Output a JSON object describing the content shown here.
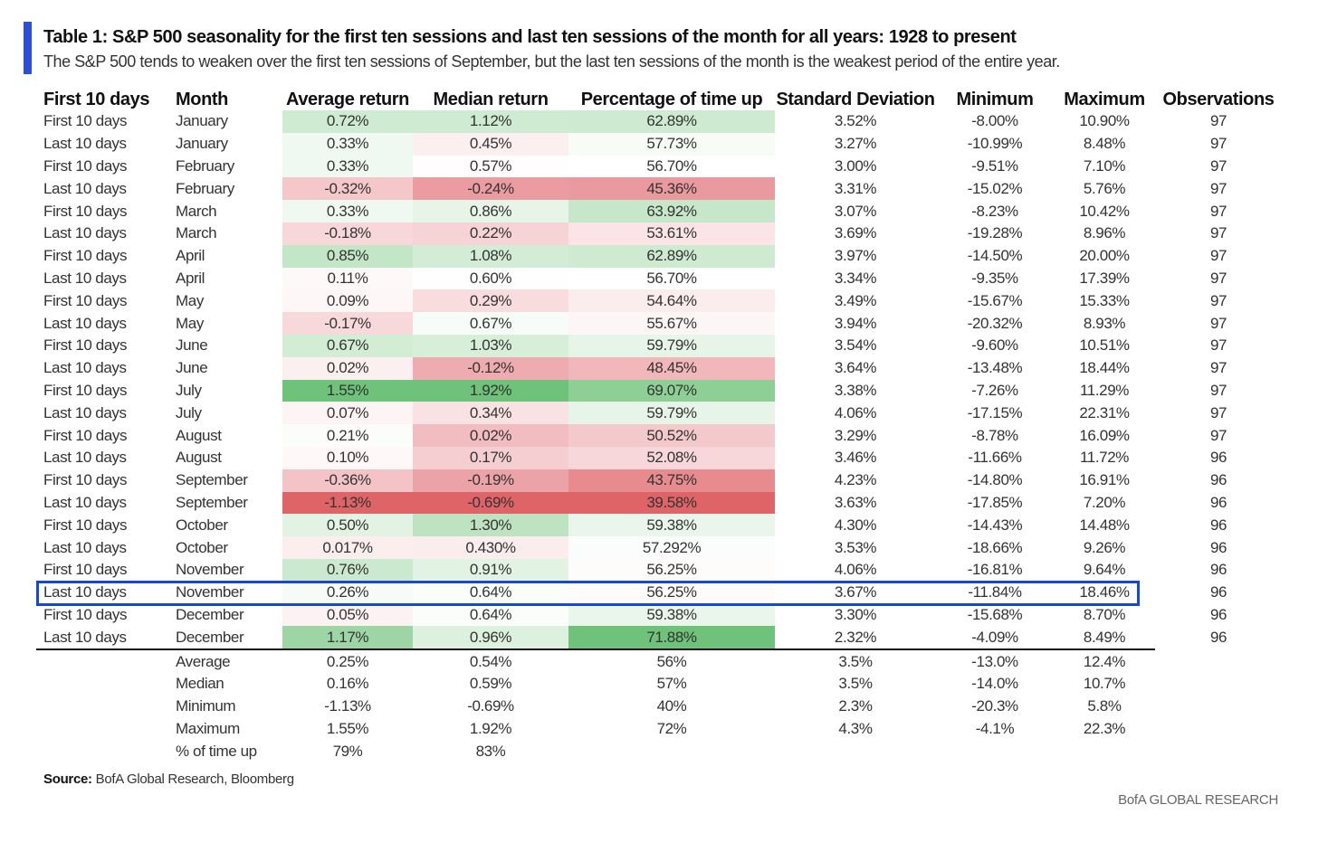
{
  "title": "Table 1: S&P 500 seasonality for the first ten sessions and last ten sessions of the month for all years: 1928 to present",
  "subtitle": "The S&P 500 tends to weaken over the first ten sessions of September, but the last ten sessions of the month is the weakest period of the entire year.",
  "columns": [
    "First 10 days",
    "Month",
    "Average return",
    "Median return",
    "Percentage of time up",
    "Standard Deviation",
    "Minimum",
    "Maximum",
    "Observations"
  ],
  "rows": [
    [
      "First 10 days",
      "January",
      "0.72%",
      "1.12%",
      "62.89%",
      "3.52%",
      "-8.00%",
      "10.90%",
      "97"
    ],
    [
      "Last 10 days",
      "January",
      "0.33%",
      "0.45%",
      "57.73%",
      "3.27%",
      "-10.99%",
      "8.48%",
      "97"
    ],
    [
      "First 10 days",
      "February",
      "0.33%",
      "0.57%",
      "56.70%",
      "3.00%",
      "-9.51%",
      "7.10%",
      "97"
    ],
    [
      "Last 10 days",
      "February",
      "-0.32%",
      "-0.24%",
      "45.36%",
      "3.31%",
      "-15.02%",
      "5.76%",
      "97"
    ],
    [
      "First 10 days",
      "March",
      "0.33%",
      "0.86%",
      "63.92%",
      "3.07%",
      "-8.23%",
      "10.42%",
      "97"
    ],
    [
      "Last 10 days",
      "March",
      "-0.18%",
      "0.22%",
      "53.61%",
      "3.69%",
      "-19.28%",
      "8.96%",
      "97"
    ],
    [
      "First 10 days",
      "April",
      "0.85%",
      "1.08%",
      "62.89%",
      "3.97%",
      "-14.50%",
      "20.00%",
      "97"
    ],
    [
      "Last 10 days",
      "April",
      "0.11%",
      "0.60%",
      "56.70%",
      "3.34%",
      "-9.35%",
      "17.39%",
      "97"
    ],
    [
      "First 10 days",
      "May",
      "0.09%",
      "0.29%",
      "54.64%",
      "3.49%",
      "-15.67%",
      "15.33%",
      "97"
    ],
    [
      "Last 10 days",
      "May",
      "-0.17%",
      "0.67%",
      "55.67%",
      "3.94%",
      "-20.32%",
      "8.93%",
      "97"
    ],
    [
      "First 10 days",
      "June",
      "0.67%",
      "1.03%",
      "59.79%",
      "3.54%",
      "-9.60%",
      "10.51%",
      "97"
    ],
    [
      "Last 10 days",
      "June",
      "0.02%",
      "-0.12%",
      "48.45%",
      "3.64%",
      "-13.48%",
      "18.44%",
      "97"
    ],
    [
      "First 10 days",
      "July",
      "1.55%",
      "1.92%",
      "69.07%",
      "3.38%",
      "-7.26%",
      "11.29%",
      "97"
    ],
    [
      "Last 10 days",
      "July",
      "0.07%",
      "0.34%",
      "59.79%",
      "4.06%",
      "-17.15%",
      "22.31%",
      "97"
    ],
    [
      "First 10 days",
      "August",
      "0.21%",
      "0.02%",
      "50.52%",
      "3.29%",
      "-8.78%",
      "16.09%",
      "97"
    ],
    [
      "Last 10 days",
      "August",
      "0.10%",
      "0.17%",
      "52.08%",
      "3.46%",
      "-11.66%",
      "11.72%",
      "96"
    ],
    [
      "First 10 days",
      "September",
      "-0.36%",
      "-0.19%",
      "43.75%",
      "4.23%",
      "-14.80%",
      "16.91%",
      "96"
    ],
    [
      "Last 10 days",
      "September",
      "-1.13%",
      "-0.69%",
      "39.58%",
      "3.63%",
      "-17.85%",
      "7.20%",
      "96"
    ],
    [
      "First 10 days",
      "October",
      "0.50%",
      "1.30%",
      "59.38%",
      "4.30%",
      "-14.43%",
      "14.48%",
      "96"
    ],
    [
      "Last 10 days",
      "October",
      "0.017%",
      "0.430%",
      "57.292%",
      "3.53%",
      "-18.66%",
      "9.26%",
      "96"
    ],
    [
      "First 10 days",
      "November",
      "0.76%",
      "0.91%",
      "56.25%",
      "4.06%",
      "-16.81%",
      "9.64%",
      "96"
    ],
    [
      "Last 10 days",
      "November",
      "0.26%",
      "0.64%",
      "56.25%",
      "3.67%",
      "-11.84%",
      "18.46%",
      "96"
    ],
    [
      "First 10 days",
      "December",
      "0.05%",
      "0.64%",
      "59.38%",
      "3.30%",
      "-15.68%",
      "8.70%",
      "96"
    ],
    [
      "Last 10 days",
      "December",
      "1.17%",
      "0.96%",
      "71.88%",
      "2.32%",
      "-4.09%",
      "8.49%",
      "96"
    ]
  ],
  "summary": [
    [
      "Average",
      "0.25%",
      "0.54%",
      "56%",
      "3.5%",
      "-13.0%",
      "12.4%"
    ],
    [
      "Median",
      "0.16%",
      "0.59%",
      "57%",
      "3.5%",
      "-14.0%",
      "10.7%"
    ],
    [
      "Minimum",
      "-1.13%",
      "-0.69%",
      "40%",
      "2.3%",
      "-20.3%",
      "5.8%"
    ],
    [
      "Maximum",
      "1.55%",
      "1.92%",
      "72%",
      "4.3%",
      "-4.1%",
      "22.3%"
    ],
    [
      "% of time up",
      "79%",
      "83%",
      "",
      "",
      "",
      ""
    ]
  ],
  "heatmap_colors": {
    "strong_green": "#6fc27a",
    "green": "#c3e6c6",
    "light_green": "#eaf5ea",
    "white": "#ffffff",
    "light_red": "#f9e1e3",
    "red": "#f0b4b8",
    "strong_red": "#df6468"
  },
  "highlight_color": "#1648d6",
  "accent_color": "#2d4fd6",
  "source_label": "Source:",
  "source_text": "BofA Global Research, Bloomberg",
  "brand": "BofA GLOBAL RESEARCH"
}
